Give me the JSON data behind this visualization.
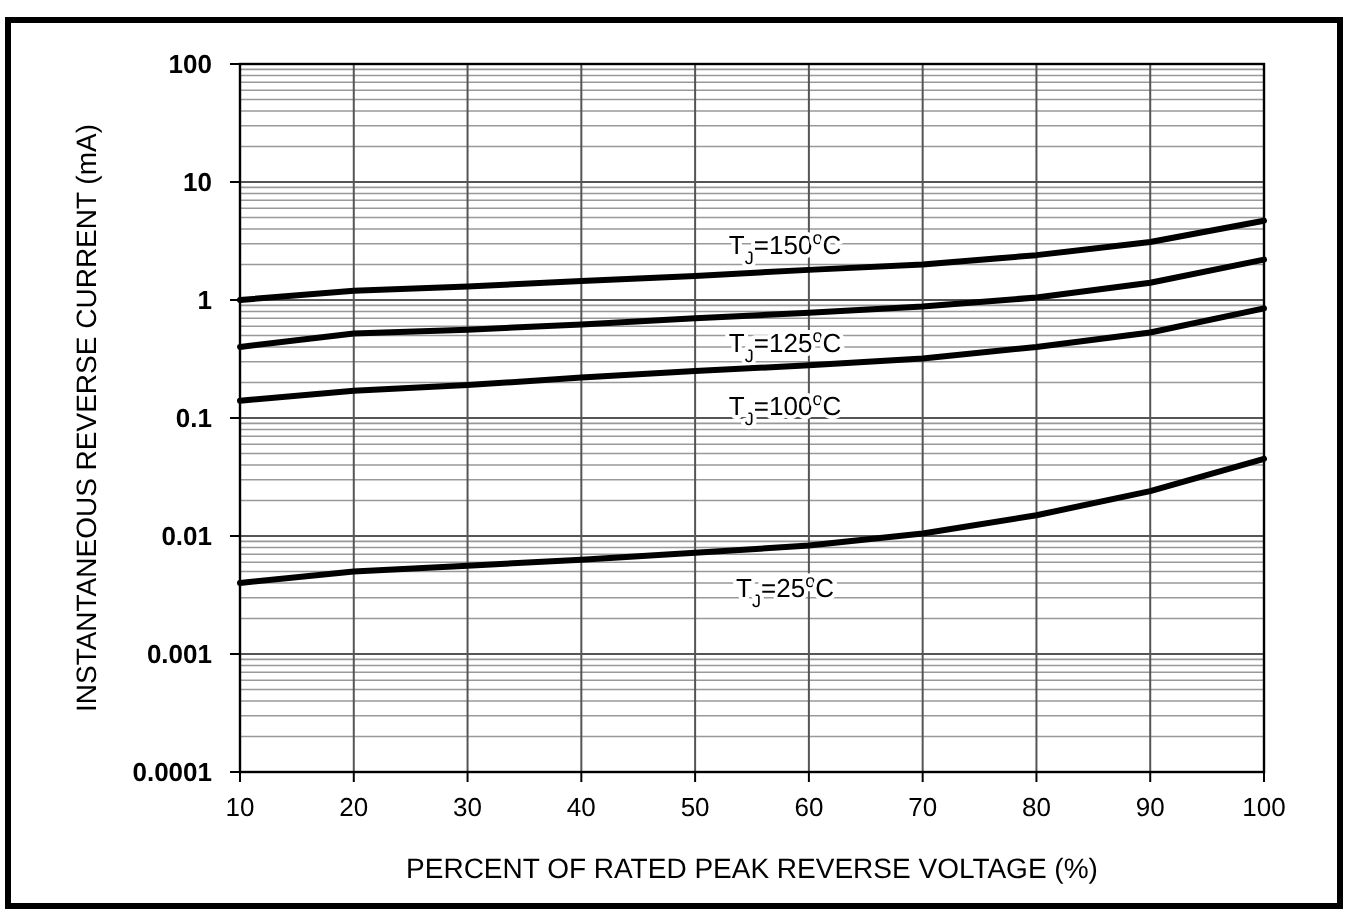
{
  "chart_data": {
    "type": "line",
    "xlabel": "PERCENT OF RATED PEAK REVERSE VOLTAGE (%)",
    "ylabel": "INSTANTANEOUS REVERSE CURRENT (mA)",
    "x": [
      10,
      20,
      30,
      40,
      50,
      60,
      70,
      80,
      90,
      100
    ],
    "xlim": [
      10,
      100
    ],
    "xticks": [
      10,
      20,
      30,
      40,
      50,
      60,
      70,
      80,
      90,
      100
    ],
    "ylim": [
      0.0001,
      100
    ],
    "yticks": [
      0.0001,
      0.001,
      0.01,
      0.1,
      1,
      10,
      100
    ],
    "log": "y",
    "grid": true,
    "marker": "none",
    "line_style": "solid",
    "series": [
      {
        "name": "T$_{J}$=150$^{o}$C",
        "color": "#000000",
        "values": [
          1.0,
          1.2,
          1.3,
          1.45,
          1.6,
          1.8,
          2.0,
          2.4,
          3.1,
          4.7
        ]
      },
      {
        "name": "T$_{J}$=125$^{o}$C",
        "color": "#000000",
        "values": [
          0.4,
          0.52,
          0.56,
          0.62,
          0.7,
          0.78,
          0.88,
          1.05,
          1.4,
          2.2
        ]
      },
      {
        "name": "T$_{J}$=100$^{o}$C",
        "color": "#000000",
        "values": [
          0.14,
          0.17,
          0.19,
          0.22,
          0.25,
          0.28,
          0.32,
          0.4,
          0.53,
          0.85
        ]
      },
      {
        "name": "T$_{J}$=25$^{o}$C",
        "color": "#000000",
        "values": [
          0.004,
          0.005,
          0.0056,
          0.0063,
          0.0072,
          0.0083,
          0.0105,
          0.015,
          0.024,
          0.045
        ]
      }
    ]
  }
}
